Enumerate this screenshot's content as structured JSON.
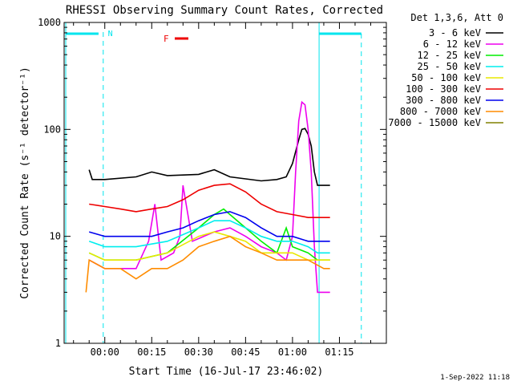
{
  "chart_data": {
    "type": "line",
    "title": "RHESSI Observing Summary Count Rates, Corrected",
    "xlabel": "Start Time (16-Jul-17 23:46:02)",
    "ylabel": "Corrected Count Rate (s⁻¹ detector⁻¹)",
    "y_scale": "log",
    "ylim": [
      1,
      1000
    ],
    "xlim_minutes": [
      -13,
      90
    ],
    "x_ticks": [
      {
        "label": "00:00",
        "minutes": 0
      },
      {
        "label": "00:15",
        "minutes": 15
      },
      {
        "label": "00:30",
        "minutes": 30
      },
      {
        "label": "00:45",
        "minutes": 45
      },
      {
        "label": "01:00",
        "minutes": 60
      },
      {
        "label": "01:15",
        "minutes": 75
      }
    ],
    "y_ticks": [
      {
        "label": "1",
        "value": 1
      },
      {
        "label": "10",
        "value": 10
      },
      {
        "label": "100",
        "value": 100
      },
      {
        "label": "1000",
        "value": 1000
      }
    ],
    "legend_header": "Det 1,3,6, Att 0",
    "legend_position": "right",
    "flags": [
      {
        "label": "N",
        "color": "#00e5ee"
      },
      {
        "label": "F",
        "color": "#ee0000"
      }
    ],
    "series": [
      {
        "name": "3 - 6 keV",
        "color": "#000000",
        "points": [
          [
            -5,
            42
          ],
          [
            -4,
            34
          ],
          [
            0,
            34
          ],
          [
            10,
            36
          ],
          [
            15,
            40
          ],
          [
            20,
            37
          ],
          [
            30,
            38
          ],
          [
            35,
            42
          ],
          [
            40,
            36
          ],
          [
            50,
            33
          ],
          [
            55,
            34
          ],
          [
            58,
            36
          ],
          [
            60,
            48
          ],
          [
            62,
            80
          ],
          [
            63,
            100
          ],
          [
            64,
            102
          ],
          [
            65,
            90
          ],
          [
            66,
            70
          ],
          [
            67,
            40
          ],
          [
            68,
            30
          ],
          [
            72,
            30
          ]
        ]
      },
      {
        "name": "6 - 12 keV",
        "color": "#ee00ee",
        "points": [
          [
            -5,
            6
          ],
          [
            0,
            5
          ],
          [
            10,
            5
          ],
          [
            14,
            9
          ],
          [
            16,
            20
          ],
          [
            18,
            6
          ],
          [
            22,
            7
          ],
          [
            24,
            10
          ],
          [
            25,
            30
          ],
          [
            26,
            20
          ],
          [
            28,
            9
          ],
          [
            35,
            11
          ],
          [
            40,
            12
          ],
          [
            45,
            10
          ],
          [
            50,
            8
          ],
          [
            55,
            7
          ],
          [
            58,
            6
          ],
          [
            60,
            10
          ],
          [
            61,
            40
          ],
          [
            62,
            120
          ],
          [
            63,
            180
          ],
          [
            64,
            170
          ],
          [
            65,
            100
          ],
          [
            66,
            40
          ],
          [
            67,
            8
          ],
          [
            68,
            3
          ],
          [
            72,
            3
          ]
        ]
      },
      {
        "name": "12 - 25 keV",
        "color": "#00ee00",
        "points": [
          [
            -5,
            7
          ],
          [
            0,
            6
          ],
          [
            10,
            6
          ],
          [
            20,
            7
          ],
          [
            30,
            12
          ],
          [
            35,
            16
          ],
          [
            38,
            18
          ],
          [
            40,
            16
          ],
          [
            45,
            12
          ],
          [
            50,
            9
          ],
          [
            55,
            7
          ],
          [
            58,
            12
          ],
          [
            60,
            8
          ],
          [
            65,
            7
          ],
          [
            68,
            6
          ],
          [
            72,
            6
          ]
        ]
      },
      {
        "name": "25 - 50 keV",
        "color": "#00eeee",
        "points": [
          [
            -5,
            9
          ],
          [
            0,
            8
          ],
          [
            10,
            8
          ],
          [
            20,
            9
          ],
          [
            30,
            12
          ],
          [
            35,
            14
          ],
          [
            40,
            14
          ],
          [
            45,
            12
          ],
          [
            50,
            10
          ],
          [
            55,
            9
          ],
          [
            60,
            9
          ],
          [
            65,
            8
          ],
          [
            68,
            7
          ],
          [
            72,
            7
          ]
        ]
      },
      {
        "name": "50 - 100 keV",
        "color": "#e8e800",
        "points": [
          [
            -5,
            7
          ],
          [
            0,
            6
          ],
          [
            10,
            6
          ],
          [
            20,
            7
          ],
          [
            30,
            10
          ],
          [
            35,
            11
          ],
          [
            40,
            10
          ],
          [
            45,
            9
          ],
          [
            50,
            7
          ],
          [
            55,
            7
          ],
          [
            60,
            7
          ],
          [
            65,
            6
          ],
          [
            72,
            6
          ]
        ]
      },
      {
        "name": "100 - 300 keV",
        "color": "#ee0000",
        "points": [
          [
            -5,
            20
          ],
          [
            0,
            19
          ],
          [
            5,
            18
          ],
          [
            10,
            17
          ],
          [
            15,
            18
          ],
          [
            20,
            19
          ],
          [
            25,
            22
          ],
          [
            30,
            27
          ],
          [
            35,
            30
          ],
          [
            40,
            31
          ],
          [
            45,
            26
          ],
          [
            50,
            20
          ],
          [
            55,
            17
          ],
          [
            60,
            16
          ],
          [
            65,
            15
          ],
          [
            70,
            15
          ],
          [
            72,
            15
          ]
        ]
      },
      {
        "name": "300 - 800 keV",
        "color": "#0000ee",
        "points": [
          [
            -5,
            11
          ],
          [
            0,
            10
          ],
          [
            5,
            10
          ],
          [
            10,
            10
          ],
          [
            15,
            10
          ],
          [
            20,
            11
          ],
          [
            25,
            12
          ],
          [
            30,
            14
          ],
          [
            35,
            16
          ],
          [
            40,
            17
          ],
          [
            45,
            15
          ],
          [
            50,
            12
          ],
          [
            55,
            10
          ],
          [
            60,
            10
          ],
          [
            65,
            9
          ],
          [
            70,
            9
          ],
          [
            72,
            9
          ]
        ]
      },
      {
        "name": "800 - 7000 keV",
        "color": "#ff8c00",
        "points": [
          [
            -6,
            3
          ],
          [
            -5,
            6
          ],
          [
            0,
            5
          ],
          [
            5,
            5
          ],
          [
            10,
            4
          ],
          [
            15,
            5
          ],
          [
            20,
            5
          ],
          [
            25,
            6
          ],
          [
            30,
            8
          ],
          [
            35,
            9
          ],
          [
            40,
            10
          ],
          [
            45,
            8
          ],
          [
            50,
            7
          ],
          [
            55,
            6
          ],
          [
            60,
            6
          ],
          [
            65,
            6
          ],
          [
            70,
            5
          ],
          [
            72,
            5
          ]
        ]
      },
      {
        "name": "7000 - 15000 keV",
        "color": "#808000",
        "points": []
      }
    ],
    "footer_date": "1-Sep-2022 11:18"
  }
}
